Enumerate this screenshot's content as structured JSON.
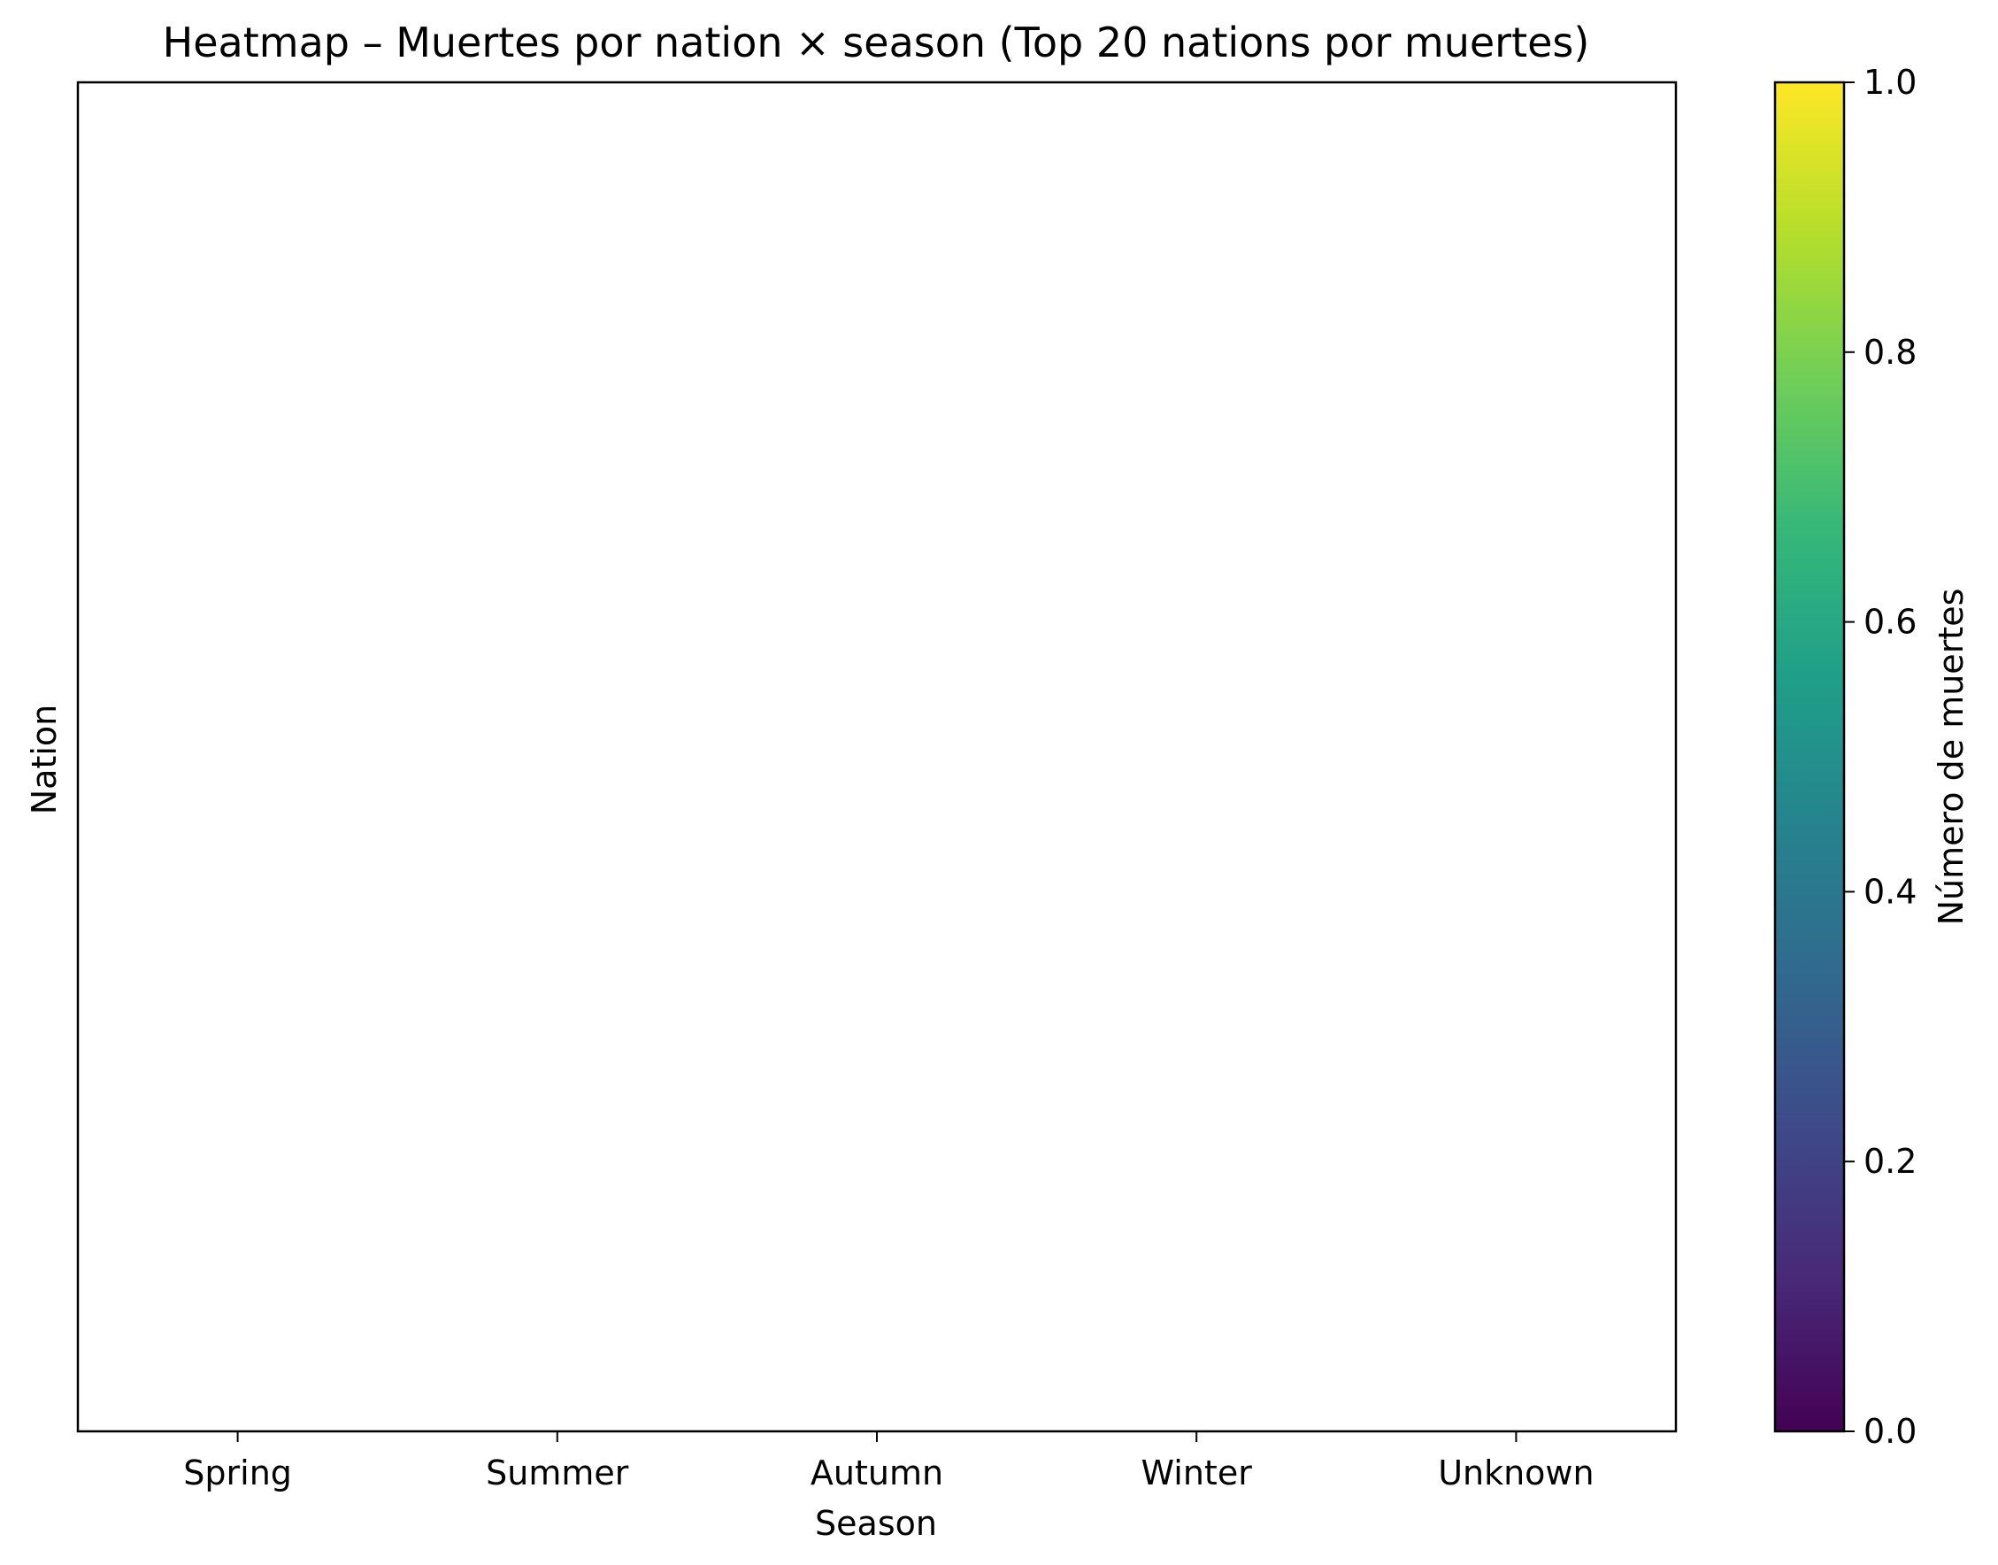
{
  "chart_data": {
    "type": "heatmap",
    "title": "Heatmap – Muertes por nation × season (Top 20 nations por muertes)",
    "xlabel": "Season",
    "ylabel": "Nation",
    "x_categories": [
      "Spring",
      "Summer",
      "Autumn",
      "Winter",
      "Unknown"
    ],
    "y_categories": [],
    "values": [],
    "colorbar": {
      "label": "Número de muertes",
      "range": [
        0,
        1
      ],
      "ticks": [
        "0.0",
        "0.2",
        "0.4",
        "0.6",
        "0.8",
        "1.0"
      ],
      "colormap": "viridis",
      "colors": [
        "#440154",
        "#482878",
        "#3e4989",
        "#31688e",
        "#26828e",
        "#1f9e89",
        "#35b779",
        "#6ece58",
        "#b5de2b",
        "#fde725"
      ]
    },
    "grid": false
  }
}
